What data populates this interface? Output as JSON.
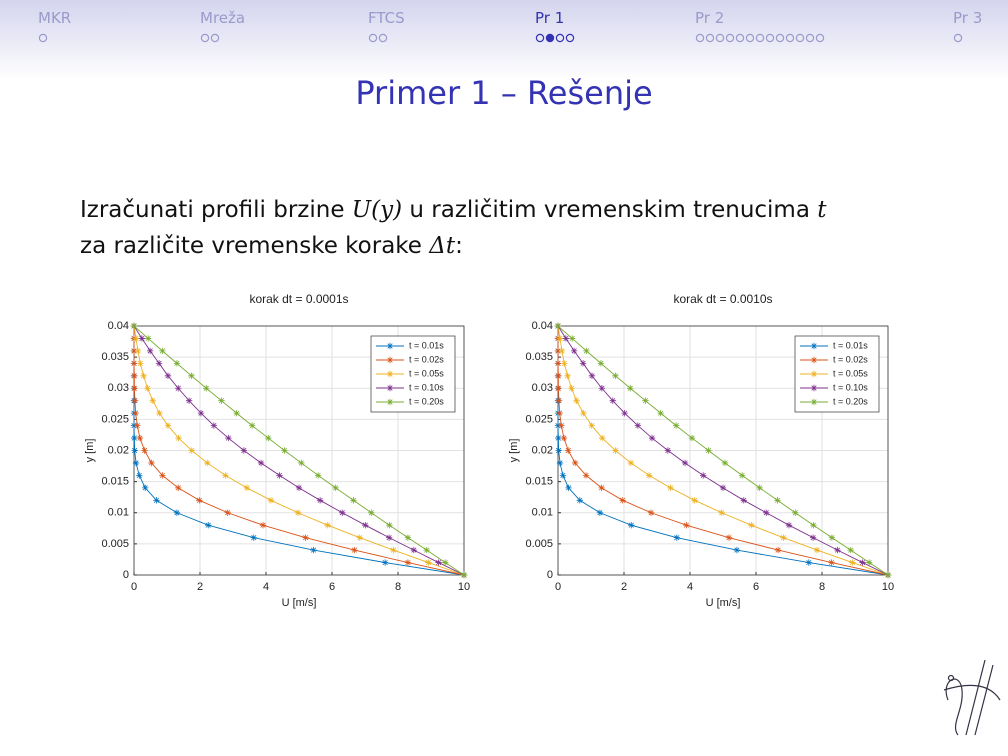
{
  "nav": [
    "MKR",
    "Mreža",
    "FTCS",
    "Pr 1",
    "Pr 2",
    "Pr 3"
  ],
  "title": "Primer 1 – Rešenje",
  "body": [
    "Izračunati profili brzine ",
    "U(y)",
    " u različitim vremenskim trenucima ",
    "t",
    "za različite vremenske korake ",
    "Δt",
    ":"
  ],
  "chart_data": [
    {
      "type": "line",
      "title": "korak dt = 0.0001s",
      "xlabel": "U [m/s]",
      "ylabel": "y [m]",
      "xlim": [
        0,
        10
      ],
      "xticks": [
        0,
        2,
        4,
        6,
        8,
        10
      ],
      "ylim": [
        0,
        0.04
      ],
      "yticks": [
        0,
        0.005,
        0.01,
        0.015,
        0.02,
        0.025,
        0.03,
        0.035,
        0.04
      ],
      "grid": true,
      "legend": "upper right",
      "y": [
        0,
        0.002,
        0.004,
        0.006,
        0.008,
        0.01,
        0.012,
        0.014,
        0.016,
        0.018,
        0.02,
        0.022,
        0.024,
        0.026,
        0.028,
        0.03,
        0.032,
        0.034,
        0.036,
        0.038,
        0.04
      ],
      "series": [
        {
          "name": "t = 0.01s",
          "color": "#0072BD",
          "x": [
            10,
            7.61,
            5.44,
            3.63,
            2.25,
            1.3,
            0.68,
            0.34,
            0.16,
            0.06,
            0.02,
            0.01,
            0,
            0,
            0,
            0,
            0,
            0,
            0,
            0,
            0
          ]
        },
        {
          "name": "t = 0.02s",
          "color": "#D95319",
          "x": [
            10,
            8.3,
            6.68,
            5.2,
            3.91,
            2.84,
            1.98,
            1.34,
            0.86,
            0.53,
            0.32,
            0.18,
            0.1,
            0.05,
            0.03,
            0.01,
            0.01,
            0,
            0,
            0,
            0
          ]
        },
        {
          "name": "t = 0.05s",
          "color": "#EDB120",
          "x": [
            10,
            8.92,
            7.86,
            6.84,
            5.87,
            4.97,
            4.15,
            3.42,
            2.77,
            2.22,
            1.75,
            1.35,
            1.03,
            0.77,
            0.57,
            0.41,
            0.29,
            0.19,
            0.12,
            0.06,
            0
          ]
        },
        {
          "name": "t = 0.10s",
          "color": "#7E2F8E",
          "x": [
            10,
            9.23,
            8.48,
            7.73,
            7.01,
            6.31,
            5.64,
            5.0,
            4.41,
            3.85,
            3.33,
            2.86,
            2.42,
            2.03,
            1.67,
            1.34,
            1.03,
            0.76,
            0.49,
            0.24,
            0
          ]
        },
        {
          "name": "t = 0.20s",
          "color": "#77AC30",
          "x": [
            10,
            9.43,
            8.87,
            8.3,
            7.74,
            7.19,
            6.65,
            6.11,
            5.58,
            5.07,
            4.56,
            4.07,
            3.58,
            3.11,
            2.65,
            2.19,
            1.74,
            1.3,
            0.86,
            0.43,
            0
          ]
        }
      ]
    },
    {
      "type": "line",
      "title": "korak dt = 0.0010s",
      "xlabel": "U [m/s]",
      "ylabel": "y [m]",
      "xlim": [
        0,
        10
      ],
      "xticks": [
        0,
        2,
        4,
        6,
        8,
        10
      ],
      "ylim": [
        0,
        0.04
      ],
      "yticks": [
        0,
        0.005,
        0.01,
        0.015,
        0.02,
        0.025,
        0.03,
        0.035,
        0.04
      ],
      "grid": true,
      "legend": "upper right",
      "y": [
        0,
        0.002,
        0.004,
        0.006,
        0.008,
        0.01,
        0.012,
        0.014,
        0.016,
        0.018,
        0.02,
        0.022,
        0.024,
        0.026,
        0.028,
        0.03,
        0.032,
        0.034,
        0.036,
        0.038,
        0.04
      ],
      "series": [
        {
          "name": "t = 0.01s",
          "color": "#0072BD",
          "x": [
            10,
            7.6,
            5.42,
            3.6,
            2.22,
            1.27,
            0.66,
            0.32,
            0.15,
            0.06,
            0.02,
            0.01,
            0,
            0,
            0,
            0,
            0,
            0,
            0,
            0,
            0
          ]
        },
        {
          "name": "t = 0.02s",
          "color": "#D95319",
          "x": [
            10,
            8.29,
            6.67,
            5.18,
            3.89,
            2.82,
            1.96,
            1.32,
            0.85,
            0.52,
            0.31,
            0.18,
            0.1,
            0.05,
            0.03,
            0.01,
            0.01,
            0,
            0,
            0,
            0
          ]
        },
        {
          "name": "t = 0.05s",
          "color": "#EDB120",
          "x": [
            10,
            8.92,
            7.85,
            6.83,
            5.86,
            4.96,
            4.14,
            3.41,
            2.76,
            2.21,
            1.74,
            1.34,
            1.02,
            0.77,
            0.56,
            0.41,
            0.29,
            0.19,
            0.12,
            0.06,
            0
          ]
        },
        {
          "name": "t = 0.10s",
          "color": "#7E2F8E",
          "x": [
            10,
            9.23,
            8.47,
            7.73,
            7.0,
            6.31,
            5.63,
            5.0,
            4.4,
            3.85,
            3.33,
            2.85,
            2.42,
            2.02,
            1.66,
            1.33,
            1.03,
            0.76,
            0.49,
            0.24,
            0
          ]
        },
        {
          "name": "t = 0.20s",
          "color": "#77AC30",
          "x": [
            10,
            9.43,
            8.87,
            8.3,
            7.74,
            7.19,
            6.65,
            6.11,
            5.58,
            5.06,
            4.56,
            4.06,
            3.58,
            3.11,
            2.65,
            2.19,
            1.74,
            1.3,
            0.86,
            0.43,
            0
          ]
        }
      ]
    }
  ]
}
